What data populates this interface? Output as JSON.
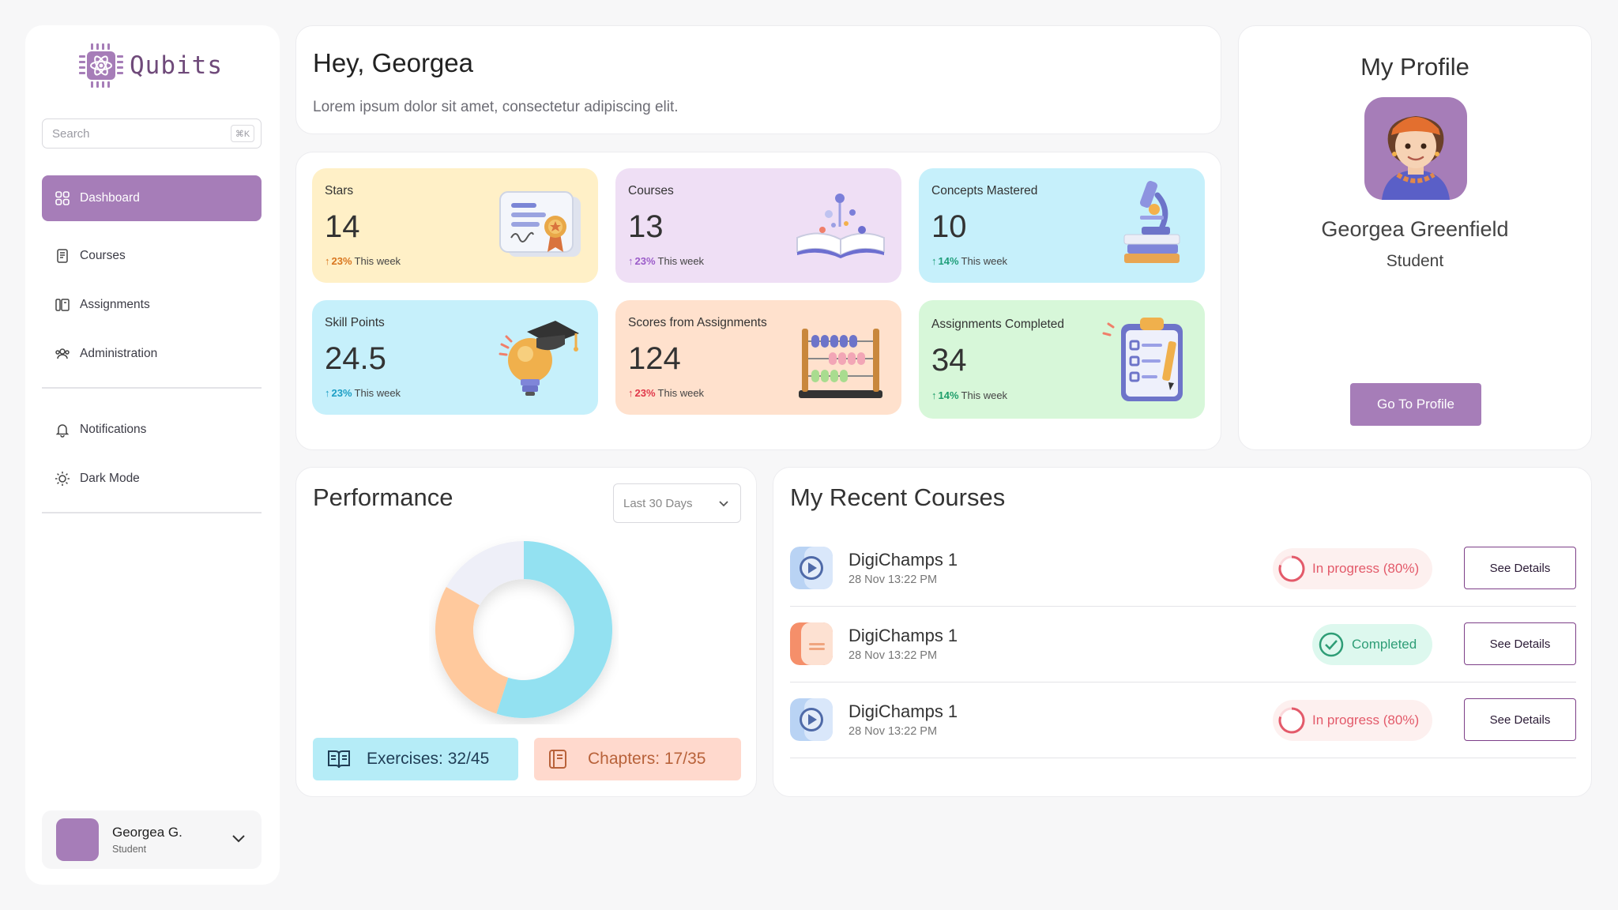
{
  "brand": {
    "name": "Qubits",
    "accent": "#a67db8"
  },
  "sidebar": {
    "search": {
      "placeholder": "Search",
      "shortcut": "⌘K"
    },
    "nav": [
      {
        "label": "Dashboard",
        "icon": "dashboard-grid-icon",
        "active": true
      },
      {
        "label": "Courses",
        "icon": "courses-book-icon"
      },
      {
        "label": "Assignments",
        "icon": "assignments-icon"
      },
      {
        "label": "Administration",
        "icon": "administration-users-icon"
      }
    ],
    "secondary": [
      {
        "label": "Notifications",
        "icon": "bell-icon"
      },
      {
        "label": "Dark Mode",
        "icon": "sun-icon"
      }
    ],
    "user": {
      "name": "Georgea G.",
      "role": "Student"
    }
  },
  "greeting": {
    "title": "Hey, Georgea",
    "subtitle": "Lorem ipsum dolor sit amet, consectetur adipiscing elit."
  },
  "stats": [
    {
      "label": "Stars",
      "value": "14",
      "change": "23%",
      "period": "This week",
      "bg": "#fff0c7",
      "trend_color": "#d9761f",
      "illustration": "certificate-icon"
    },
    {
      "label": "Courses",
      "value": "13",
      "change": "23%",
      "period": "This week",
      "bg": "#efdff5",
      "trend_color": "#9b5cc9",
      "illustration": "open-book-icon"
    },
    {
      "label": "Concepts Mastered",
      "value": "10",
      "change": "14%",
      "period": "This week",
      "bg": "#c6f0fb",
      "trend_color": "#1f9e7a",
      "illustration": "microscope-icon"
    },
    {
      "label": "Skill Points",
      "value": "24.5",
      "change": "23%",
      "period": "This week",
      "bg": "#c6f0fb",
      "trend_color": "#1c9ec4",
      "illustration": "lightbulb-graduation-icon"
    },
    {
      "label": "Scores from Assignments",
      "value": "124",
      "change": "23%",
      "period": "This week",
      "bg": "#ffe1cd",
      "trend_color": "#e0384a",
      "illustration": "abacus-icon"
    },
    {
      "label": "Assignments Completed",
      "value": "34",
      "change": "14%",
      "period": "This week",
      "bg": "#d7f7d9",
      "trend_color": "#1f9e6a",
      "illustration": "clipboard-checklist-icon"
    }
  ],
  "profile": {
    "title": "My Profile",
    "name": "Georgea Greenfield",
    "role": "Student",
    "button": "Go To Profile"
  },
  "performance": {
    "title": "Performance",
    "range": "Last 30 Days",
    "exercises": "Exercises: 32/45",
    "chapters": "Chapters: 17/35",
    "segments": [
      {
        "label": "Exercises",
        "fraction": 0.55,
        "color": "#93e1f1"
      },
      {
        "label": "Chapters",
        "fraction": 0.28,
        "color": "#ffc99d"
      },
      {
        "label": "Remaining",
        "fraction": 0.17,
        "color": "#eeeff8"
      }
    ]
  },
  "recent": {
    "title": "My Recent Courses",
    "courses": [
      {
        "name": "DigiChamps 1",
        "date": "28 Nov 13:22 PM",
        "status": "In progress (80%)",
        "state": "progress",
        "thumb": "video-play-icon",
        "action": "See Details"
      },
      {
        "name": "DigiChamps 1",
        "date": "28 Nov 13:22 PM",
        "status": "Completed",
        "state": "done",
        "thumb": "document-icon",
        "action": "See Details"
      },
      {
        "name": "DigiChamps 1",
        "date": "28 Nov 13:22 PM",
        "status": "In progress (80%)",
        "state": "progress",
        "thumb": "video-play-icon",
        "action": "See Details"
      }
    ]
  }
}
